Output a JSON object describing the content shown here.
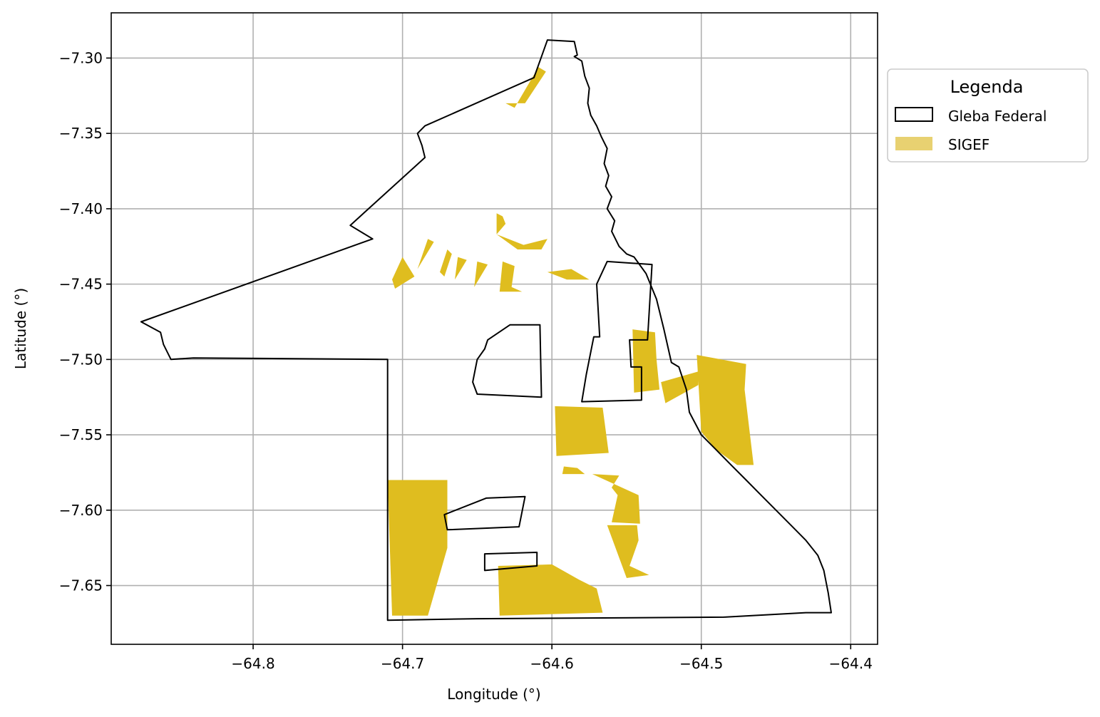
{
  "chart_data": {
    "type": "map",
    "xlabel": "Longitude (°)",
    "ylabel": "Latitude (°)",
    "xlim": [
      -64.895,
      -64.382
    ],
    "ylim": [
      -7.689,
      -7.27
    ],
    "grid": true,
    "x_ticks": [
      {
        "value": -64.8,
        "label": "−64.8"
      },
      {
        "value": -64.7,
        "label": "−64.7"
      },
      {
        "value": -64.6,
        "label": "−64.6"
      },
      {
        "value": -64.5,
        "label": "−64.5"
      },
      {
        "value": -64.4,
        "label": "−64.4"
      }
    ],
    "y_ticks": [
      {
        "value": -7.3,
        "label": "−7.30"
      },
      {
        "value": -7.35,
        "label": "−7.35"
      },
      {
        "value": -7.4,
        "label": "−7.40"
      },
      {
        "value": -7.45,
        "label": "−7.45"
      },
      {
        "value": -7.5,
        "label": "−7.50"
      },
      {
        "value": -7.55,
        "label": "−7.55"
      },
      {
        "value": -7.6,
        "label": "−7.60"
      },
      {
        "value": -7.65,
        "label": "−7.65"
      }
    ],
    "legend": {
      "title": "Legenda",
      "position": "outside-right-top",
      "entries": [
        {
          "name": "Gleba Federal",
          "kind": "outline",
          "color": "#000000"
        },
        {
          "name": "SIGEF",
          "kind": "fill",
          "color": "#e8d171"
        }
      ]
    },
    "colors": {
      "sigef_fill": "#dfbd1f",
      "gleba_stroke": "#000000",
      "grid": "#b0b0b0"
    },
    "layers": [
      {
        "name": "Gleba Federal",
        "polygons": [
          [
            [
              -64.603,
              -7.288
            ],
            [
              -64.585,
              -7.289
            ],
            [
              -64.583,
              -7.298
            ],
            [
              -64.585,
              -7.299
            ],
            [
              -64.58,
              -7.302
            ],
            [
              -64.578,
              -7.312
            ],
            [
              -64.575,
              -7.32
            ],
            [
              -64.576,
              -7.33
            ],
            [
              -64.574,
              -7.338
            ],
            [
              -64.57,
              -7.345
            ],
            [
              -64.567,
              -7.352
            ],
            [
              -64.563,
              -7.36
            ],
            [
              -64.565,
              -7.37
            ],
            [
              -64.562,
              -7.378
            ],
            [
              -64.564,
              -7.385
            ],
            [
              -64.56,
              -7.392
            ],
            [
              -64.563,
              -7.4
            ],
            [
              -64.558,
              -7.408
            ],
            [
              -64.56,
              -7.415
            ],
            [
              -64.555,
              -7.425
            ],
            [
              -64.55,
              -7.43
            ],
            [
              -64.545,
              -7.432
            ],
            [
              -64.537,
              -7.443
            ],
            [
              -64.53,
              -7.46
            ],
            [
              -64.525,
              -7.48
            ],
            [
              -64.52,
              -7.502
            ],
            [
              -64.515,
              -7.505
            ],
            [
              -64.51,
              -7.52
            ],
            [
              -64.508,
              -7.535
            ],
            [
              -64.5,
              -7.55
            ],
            [
              -64.49,
              -7.56
            ],
            [
              -64.48,
              -7.57
            ],
            [
              -64.47,
              -7.58
            ],
            [
              -64.46,
              -7.59
            ],
            [
              -64.45,
              -7.6
            ],
            [
              -64.44,
              -7.61
            ],
            [
              -64.43,
              -7.62
            ],
            [
              -64.422,
              -7.63
            ],
            [
              -64.418,
              -7.64
            ],
            [
              -64.415,
              -7.655
            ],
            [
              -64.413,
              -7.668
            ],
            [
              -64.43,
              -7.668
            ],
            [
              -64.485,
              -7.671
            ],
            [
              -64.65,
              -7.672
            ],
            [
              -64.71,
              -7.673
            ],
            [
              -64.71,
              -7.5
            ],
            [
              -64.84,
              -7.499
            ],
            [
              -64.855,
              -7.5
            ],
            [
              -64.86,
              -7.49
            ],
            [
              -64.862,
              -7.482
            ],
            [
              -64.875,
              -7.475
            ],
            [
              -64.72,
              -7.42
            ],
            [
              -64.735,
              -7.411
            ],
            [
              -64.685,
              -7.366
            ],
            [
              -64.687,
              -7.358
            ],
            [
              -64.69,
              -7.35
            ],
            [
              -64.685,
              -7.345
            ],
            [
              -64.612,
              -7.313
            ],
            [
              -64.603,
              -7.288
            ]
          ],
          [
            [
              -64.628,
              -7.477
            ],
            [
              -64.608,
              -7.477
            ],
            [
              -64.607,
              -7.525
            ],
            [
              -64.65,
              -7.523
            ],
            [
              -64.653,
              -7.515
            ],
            [
              -64.65,
              -7.5
            ],
            [
              -64.645,
              -7.493
            ],
            [
              -64.643,
              -7.487
            ],
            [
              -64.628,
              -7.477
            ]
          ],
          [
            [
              -64.563,
              -7.435
            ],
            [
              -64.533,
              -7.437
            ],
            [
              -64.536,
              -7.487
            ],
            [
              -64.548,
              -7.487
            ],
            [
              -64.547,
              -7.505
            ],
            [
              -64.54,
              -7.505
            ],
            [
              -64.54,
              -7.527
            ],
            [
              -64.58,
              -7.528
            ],
            [
              -64.577,
              -7.51
            ],
            [
              -64.575,
              -7.5
            ],
            [
              -64.572,
              -7.485
            ],
            [
              -64.568,
              -7.485
            ],
            [
              -64.57,
              -7.45
            ],
            [
              -64.563,
              -7.435
            ]
          ],
          [
            [
              -64.644,
              -7.592
            ],
            [
              -64.618,
              -7.591
            ],
            [
              -64.622,
              -7.611
            ],
            [
              -64.67,
              -7.613
            ],
            [
              -64.672,
              -7.603
            ],
            [
              -64.644,
              -7.592
            ]
          ],
          [
            [
              -64.645,
              -7.629
            ],
            [
              -64.61,
              -7.628
            ],
            [
              -64.61,
              -7.637
            ],
            [
              -64.645,
              -7.64
            ],
            [
              -64.645,
              -7.629
            ]
          ]
        ]
      },
      {
        "name": "SIGEF",
        "polygons": [
          [
            [
              -64.609,
              -7.306
            ],
            [
              -64.604,
              -7.309
            ],
            [
              -64.618,
              -7.33
            ],
            [
              -64.631,
              -7.33
            ],
            [
              -64.625,
              -7.333
            ],
            [
              -64.609,
              -7.306
            ]
          ],
          [
            [
              -64.637,
              -7.403
            ],
            [
              -64.633,
              -7.405
            ],
            [
              -64.631,
              -7.41
            ],
            [
              -64.637,
              -7.417
            ],
            [
              -64.619,
              -7.424
            ],
            [
              -64.603,
              -7.42
            ],
            [
              -64.607,
              -7.427
            ],
            [
              -64.623,
              -7.427
            ],
            [
              -64.637,
              -7.417
            ],
            [
              -64.637,
              -7.403
            ]
          ],
          [
            [
              -64.7,
              -7.432
            ],
            [
              -64.707,
              -7.447
            ],
            [
              -64.705,
              -7.453
            ],
            [
              -64.692,
              -7.445
            ],
            [
              -64.7,
              -7.432
            ]
          ],
          [
            [
              -64.683,
              -7.42
            ],
            [
              -64.679,
              -7.422
            ],
            [
              -64.69,
              -7.44
            ],
            [
              -64.683,
              -7.42
            ]
          ],
          [
            [
              -64.67,
              -7.427
            ],
            [
              -64.675,
              -7.442
            ],
            [
              -64.672,
              -7.445
            ],
            [
              -64.667,
              -7.43
            ],
            [
              -64.67,
              -7.427
            ]
          ],
          [
            [
              -64.663,
              -7.432
            ],
            [
              -64.657,
              -7.434
            ],
            [
              -64.665,
              -7.447
            ],
            [
              -64.663,
              -7.432
            ]
          ],
          [
            [
              -64.65,
              -7.435
            ],
            [
              -64.643,
              -7.437
            ],
            [
              -64.652,
              -7.452
            ],
            [
              -64.65,
              -7.435
            ]
          ],
          [
            [
              -64.633,
              -7.435
            ],
            [
              -64.625,
              -7.438
            ],
            [
              -64.627,
              -7.452
            ],
            [
              -64.62,
              -7.455
            ],
            [
              -64.635,
              -7.455
            ],
            [
              -64.633,
              -7.435
            ]
          ],
          [
            [
              -64.587,
              -7.44
            ],
            [
              -64.575,
              -7.447
            ],
            [
              -64.59,
              -7.447
            ],
            [
              -64.603,
              -7.442
            ],
            [
              -64.587,
              -7.44
            ]
          ],
          [
            [
              -64.546,
              -7.48
            ],
            [
              -64.531,
              -7.482
            ],
            [
              -64.53,
              -7.5
            ],
            [
              -64.528,
              -7.52
            ],
            [
              -64.545,
              -7.522
            ],
            [
              -64.546,
              -7.48
            ]
          ],
          [
            [
              -64.527,
              -7.515
            ],
            [
              -64.502,
              -7.508
            ],
            [
              -64.502,
              -7.517
            ],
            [
              -64.524,
              -7.529
            ],
            [
              -64.527,
              -7.515
            ]
          ],
          [
            [
              -64.503,
              -7.497
            ],
            [
              -64.47,
              -7.503
            ],
            [
              -64.471,
              -7.52
            ],
            [
              -64.465,
              -7.57
            ],
            [
              -64.476,
              -7.57
            ],
            [
              -64.49,
              -7.56
            ],
            [
              -64.5,
              -7.548
            ],
            [
              -64.503,
              -7.497
            ]
          ],
          [
            [
              -64.598,
              -7.531
            ],
            [
              -64.566,
              -7.532
            ],
            [
              -64.562,
              -7.562
            ],
            [
              -64.597,
              -7.564
            ],
            [
              -64.598,
              -7.531
            ]
          ],
          [
            [
              -64.592,
              -7.571
            ],
            [
              -64.583,
              -7.572
            ],
            [
              -64.578,
              -7.576
            ],
            [
              -64.593,
              -7.576
            ],
            [
              -64.592,
              -7.571
            ]
          ],
          [
            [
              -64.573,
              -7.576
            ],
            [
              -64.555,
              -7.577
            ],
            [
              -64.56,
              -7.585
            ],
            [
              -64.556,
              -7.59
            ],
            [
              -64.56,
              -7.608
            ],
            [
              -64.541,
              -7.609
            ],
            [
              -64.542,
              -7.59
            ],
            [
              -64.573,
              -7.576
            ]
          ],
          [
            [
              -64.563,
              -7.61
            ],
            [
              -64.543,
              -7.61
            ],
            [
              -64.542,
              -7.62
            ],
            [
              -64.548,
              -7.637
            ],
            [
              -64.535,
              -7.643
            ],
            [
              -64.55,
              -7.645
            ],
            [
              -64.563,
              -7.61
            ]
          ],
          [
            [
              -64.71,
              -7.58
            ],
            [
              -64.67,
              -7.58
            ],
            [
              -64.67,
              -7.625
            ],
            [
              -64.683,
              -7.67
            ],
            [
              -64.707,
              -7.67
            ],
            [
              -64.71,
              -7.58
            ]
          ],
          [
            [
              -64.636,
              -7.637
            ],
            [
              -64.6,
              -7.636
            ],
            [
              -64.582,
              -7.646
            ],
            [
              -64.57,
              -7.652
            ],
            [
              -64.566,
              -7.668
            ],
            [
              -64.635,
              -7.67
            ],
            [
              -64.636,
              -7.637
            ]
          ]
        ]
      }
    ]
  }
}
